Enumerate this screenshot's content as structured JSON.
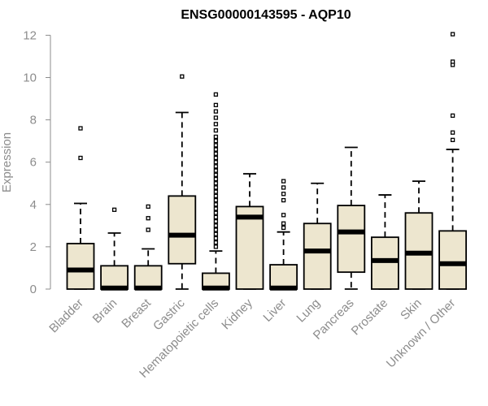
{
  "chart_data": {
    "type": "boxplot",
    "title": "ENSG00000143595 - AQP10",
    "ylabel": "Expression",
    "xlabel": "",
    "ylim": [
      0,
      12
    ],
    "yticks": [
      0,
      2,
      4,
      6,
      8,
      10,
      12
    ],
    "grid": false,
    "legend": "none",
    "colors": {
      "box_fill": "#ede6cf",
      "stroke": "#000000",
      "axis_text": "#8c8c8c",
      "outlier_stroke": "#000000"
    },
    "categories": [
      "Bladder",
      "Brain",
      "Breast",
      "Gastric",
      "Hematopoietic cells",
      "Kidney",
      "Liver",
      "Lung",
      "Pancreas",
      "Prostate",
      "Skin",
      "Unknown / Other"
    ],
    "boxes": [
      {
        "q1": 0.0,
        "median": 0.9,
        "q3": 2.15,
        "whisker_low": 0,
        "whisker_high": 4.05,
        "outliers": [
          6.2,
          7.6
        ]
      },
      {
        "q1": 0.0,
        "median": 0.05,
        "q3": 1.1,
        "whisker_low": 0,
        "whisker_high": 2.65,
        "outliers": [
          3.75
        ]
      },
      {
        "q1": 0.0,
        "median": 0.05,
        "q3": 1.1,
        "whisker_low": 0,
        "whisker_high": 1.9,
        "outliers": [
          2.8,
          3.35,
          3.9
        ]
      },
      {
        "q1": 1.2,
        "median": 2.55,
        "q3": 4.4,
        "whisker_low": 0,
        "whisker_high": 8.35,
        "outliers": [
          10.05
        ]
      },
      {
        "q1": 0.0,
        "median": 0.05,
        "q3": 0.75,
        "whisker_low": 0,
        "whisker_high": 1.8,
        "outliers": [
          2.0,
          2.2,
          2.4,
          2.6,
          2.8,
          3.0,
          3.2,
          3.4,
          3.6,
          3.8,
          4.0,
          4.2,
          4.4,
          4.6,
          4.8,
          5.0,
          5.2,
          5.4,
          5.6,
          5.8,
          6.0,
          6.2,
          6.4,
          6.6,
          6.8,
          7.0,
          7.2,
          7.5,
          7.8,
          8.1,
          8.4,
          8.7,
          9.2
        ]
      },
      {
        "q1": 0.0,
        "median": 3.4,
        "q3": 3.9,
        "whisker_low": 0,
        "whisker_high": 5.45,
        "outliers": []
      },
      {
        "q1": 0.0,
        "median": 0.05,
        "q3": 1.15,
        "whisker_low": 0,
        "whisker_high": 2.7,
        "outliers": [
          2.9,
          3.1,
          3.5,
          4.2,
          4.5,
          4.8,
          5.1
        ]
      },
      {
        "q1": 0.0,
        "median": 1.8,
        "q3": 3.1,
        "whisker_low": 0,
        "whisker_high": 5.0,
        "outliers": []
      },
      {
        "q1": 0.8,
        "median": 2.7,
        "q3": 3.95,
        "whisker_low": 0,
        "whisker_high": 6.7,
        "outliers": []
      },
      {
        "q1": 0.0,
        "median": 1.35,
        "q3": 2.45,
        "whisker_low": 0,
        "whisker_high": 4.45,
        "outliers": []
      },
      {
        "q1": 0.0,
        "median": 1.7,
        "q3": 3.6,
        "whisker_low": 0,
        "whisker_high": 5.1,
        "outliers": []
      },
      {
        "q1": 0.0,
        "median": 1.2,
        "q3": 2.75,
        "whisker_low": 0,
        "whisker_high": 6.6,
        "outliers": [
          7.05,
          7.4,
          8.2,
          10.6,
          10.75,
          12.05
        ]
      }
    ]
  }
}
